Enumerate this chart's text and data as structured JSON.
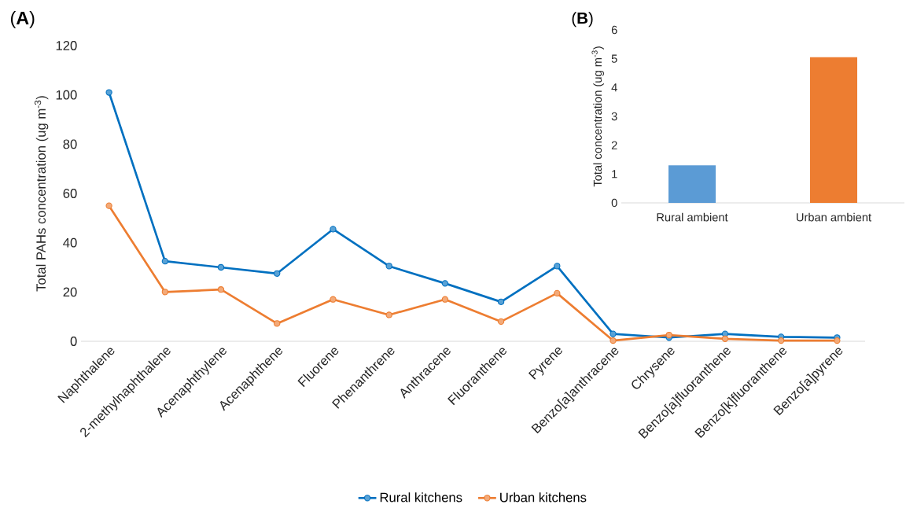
{
  "chart_data": [
    {
      "type": "line",
      "annotations": [
        "(**A**)"
      ],
      "ylabel": "Total PAHs concentration (ug m$^{-3}$)",
      "categories": [
        "Naphthalene",
        "2-methylnaphthalene",
        "Acenaphthylene",
        "Acenaphthene",
        "Fluorene",
        "Phenanthrene",
        "Anthracene",
        "Fluoranthene",
        "Pyrene",
        "Benzo[a]anthracene",
        "Chrysene",
        "Benzo[a]fluoranthene",
        "Benzo[k]fluoranthene",
        "Benzo[a]pyrene"
      ],
      "series": [
        {
          "name": "Rural kitchens",
          "color": "#0070c0",
          "values": [
            101,
            32.5,
            30,
            27.5,
            45.5,
            30.5,
            23.5,
            16,
            30.5,
            3,
            1.5,
            3,
            1.8,
            1.5
          ]
        },
        {
          "name": "Urban kitchens",
          "color": "#ed7d31",
          "values": [
            55,
            20,
            21,
            7.2,
            17,
            10.7,
            17,
            8,
            19.5,
            0.3,
            2.5,
            1,
            0.3,
            0.3
          ]
        }
      ],
      "ylim": [
        0,
        120
      ],
      "yticks": [
        0,
        20,
        40,
        60,
        80,
        100,
        120
      ],
      "grid": false,
      "legend": "bottom",
      "marker": "circle",
      "line_style": "solid"
    },
    {
      "type": "bar",
      "annotations": [
        "(**B**)"
      ],
      "ylabel": "Total  concentration (ug m$^{-3}$)",
      "categories": [
        "Rural ambient",
        "Urban ambient"
      ],
      "values": [
        1.3,
        5.05
      ],
      "colors": [
        "#5b9bd5",
        "#ed7d31"
      ],
      "ylim": [
        0,
        6
      ],
      "yticks": [
        0,
        1,
        2,
        3,
        4,
        5,
        6
      ],
      "grid": false,
      "legend": false
    }
  ]
}
